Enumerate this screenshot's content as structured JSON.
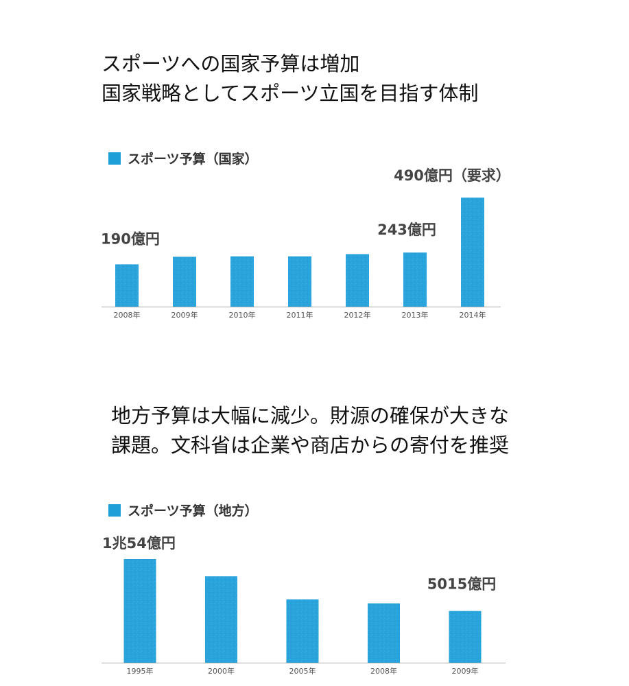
{
  "headline_1": {
    "line1": "スポーツへの国家予算は増加",
    "line2": "国家戦略としてスポーツ立国を目指す体制"
  },
  "headline_2": {
    "line1": "地方予算は大幅に減少。財源の確保が大きな",
    "line2": "課題。文科省は企業や商店からの寄付を推奨"
  },
  "colors": {
    "bar": "#29a3dc",
    "swatch": "#1e9fd8",
    "axis": "#aaaaaa",
    "text": "#111111",
    "value_label": "#444444"
  },
  "chart_data": [
    {
      "type": "bar",
      "title": "スポーツ予算（国家）",
      "unit": "億円",
      "categories": [
        "2008年",
        "2009年",
        "2010年",
        "2011年",
        "2012年",
        "2013年",
        "2014年"
      ],
      "values": [
        190,
        224,
        226,
        226,
        236,
        243,
        490
      ],
      "ylim": [
        0,
        490
      ],
      "grid": false,
      "annotations": [
        {
          "index": 0,
          "text": "190億円"
        },
        {
          "index": 5,
          "text": "243億円"
        },
        {
          "index": 6,
          "text": "490億円（要求）"
        }
      ]
    },
    {
      "type": "bar",
      "title": "スポーツ予算（地方）",
      "unit": "億円",
      "categories": [
        "1995年",
        "2000年",
        "2005年",
        "2008年",
        "2009年"
      ],
      "values": [
        10054,
        8380,
        6150,
        5760,
        5015
      ],
      "ylim": [
        0,
        10054
      ],
      "grid": false,
      "annotations": [
        {
          "index": 0,
          "text": "1兆54億円"
        },
        {
          "index": 4,
          "text": "5015億円"
        }
      ]
    }
  ]
}
